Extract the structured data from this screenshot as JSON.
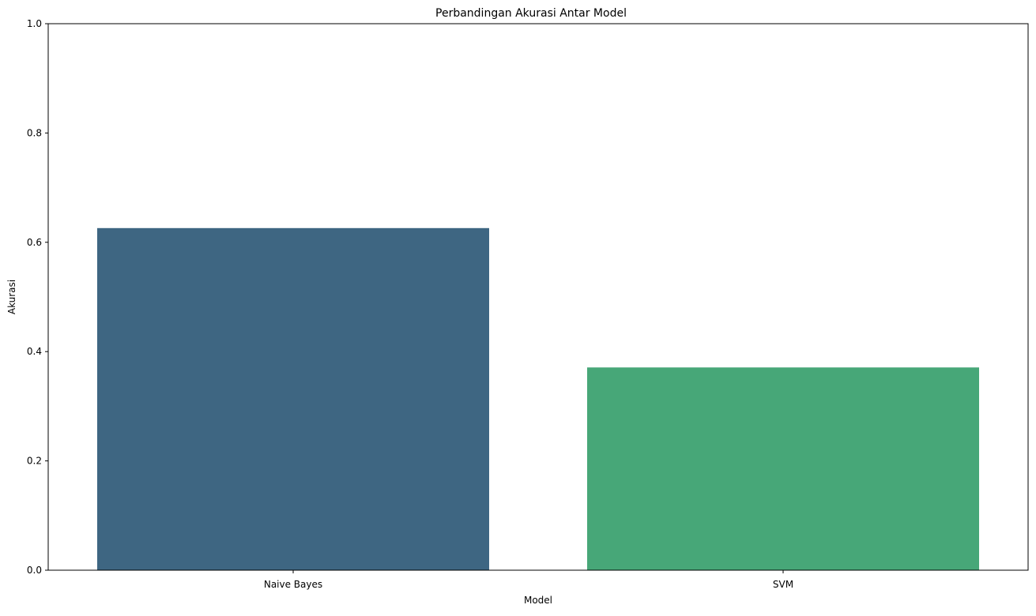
{
  "chart_data": {
    "type": "bar",
    "title": "Perbandingan Akurasi Antar Model",
    "xlabel": "Model",
    "ylabel": "Akurasi",
    "categories": [
      "Naive Bayes",
      "SVM"
    ],
    "values": [
      0.626,
      0.371
    ],
    "colors": [
      "#3e6682",
      "#47a778"
    ],
    "ylim": [
      0,
      1
    ],
    "yticks": [
      "0.0",
      "0.2",
      "0.4",
      "0.6",
      "0.8",
      "1.0"
    ],
    "grid": false,
    "legend": "none"
  }
}
